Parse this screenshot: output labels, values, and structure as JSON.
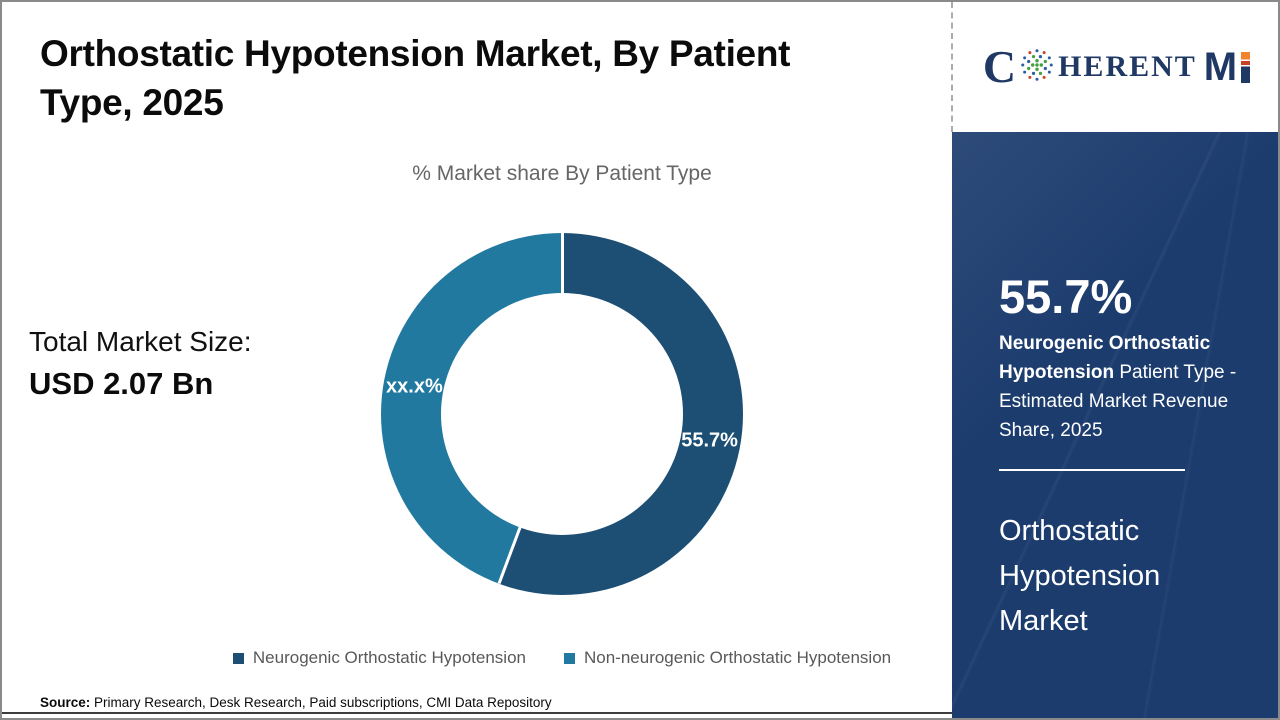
{
  "page": {
    "title": "Orthostatic Hypotension Market, By Patient Type, 2025",
    "source_label": "Source:",
    "source_text": " Primary Research, Desk Research, Paid subscriptions, CMI Data Repository"
  },
  "logo": {
    "c": "C",
    "herent": "HERENT",
    "m": "M",
    "globe_icon": "dotted-globe",
    "navy": "#203864",
    "orange": "#f0852d",
    "red": "#cb4125"
  },
  "left_panel": {
    "total_label": "Total Market Size:",
    "total_value": "USD 2.07 Bn"
  },
  "chart_data": {
    "type": "pie",
    "donut": true,
    "title": "% Market share By Patient Type",
    "start_angle": "top",
    "direction": "clockwise",
    "series": [
      {
        "name": "Neurogenic Orthostatic Hypotension",
        "value": 55.7,
        "display_label": "55.7%",
        "color": "#1d4e74"
      },
      {
        "name": "Non-neurogenic Orthostatic Hypotension",
        "value": 44.3,
        "display_label": "xx.x%",
        "color": "#2179a0"
      }
    ],
    "legend_position": "bottom"
  },
  "sidebar": {
    "bg_color": "#1c3c6e",
    "stat_value": "55.7%",
    "stat_bold": "Neurogenic Orthostatic Hypotension",
    "stat_rest": " Patient Type - Estimated Market Revenue Share, 2025",
    "market_name": "Orthostatic Hypotension Market"
  }
}
